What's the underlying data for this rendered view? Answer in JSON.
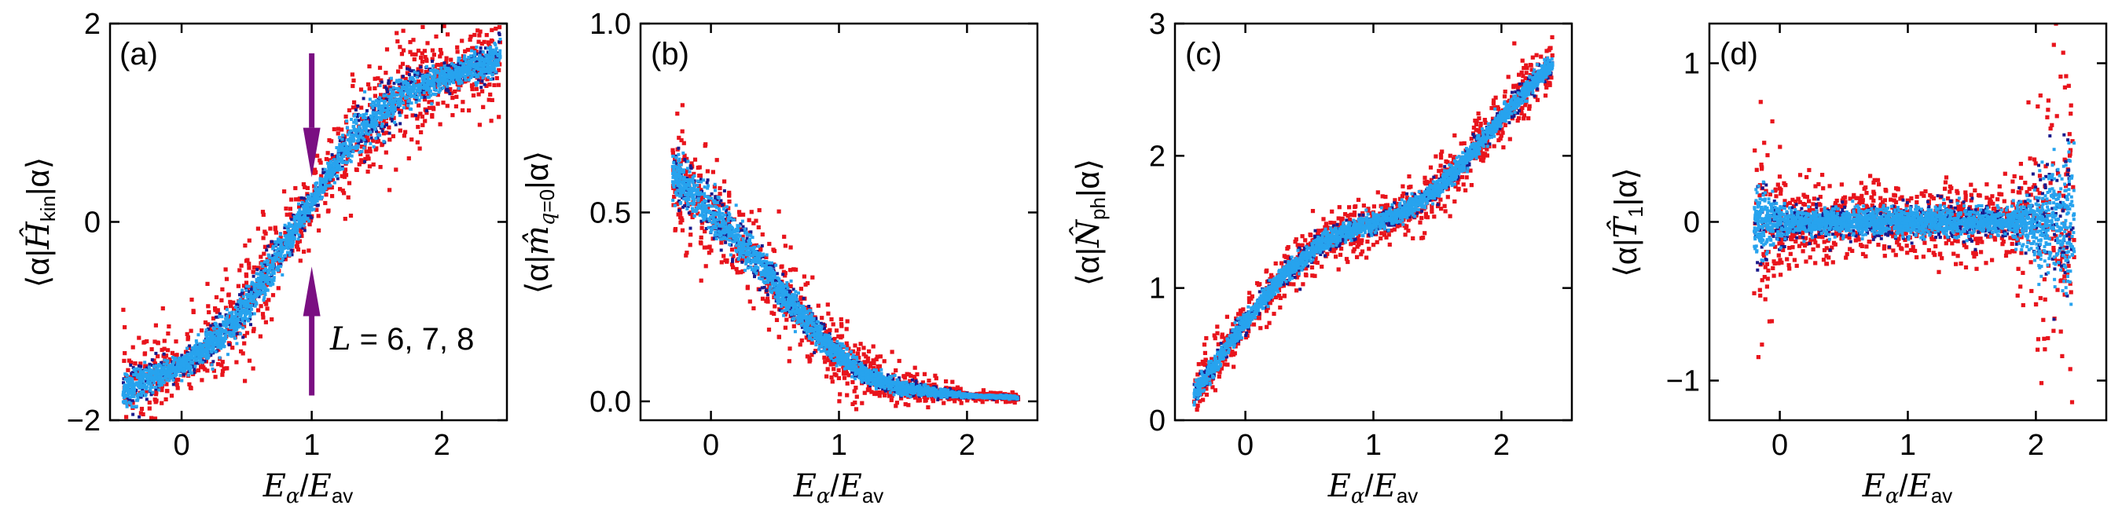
{
  "chart_data": [
    {
      "type": "scatter",
      "panel_label": "(a)",
      "ylabel": "⟨α|Ĥkin|α⟩",
      "xlabel": "Eα/Eav",
      "xlim": [
        -0.55,
        2.5
      ],
      "ylim": [
        -2,
        2
      ],
      "xticks": [
        0,
        1,
        2
      ],
      "yticks": [
        -2,
        0,
        2
      ],
      "ytick_labels": [
        "−2",
        "0",
        "2"
      ],
      "annotation": "L = 6, 7, 8",
      "arrows_at_x": 1,
      "arrow_color": "#7a0f82",
      "series_colors": [
        "#e8141c",
        "#1a1a8c",
        "#27a3ee"
      ],
      "trend": [
        [
          -0.45,
          -1.7
        ],
        [
          0.0,
          -1.45
        ],
        [
          0.4,
          -1.05
        ],
        [
          0.7,
          -0.45
        ],
        [
          0.9,
          0.0
        ],
        [
          1.1,
          0.4
        ],
        [
          1.35,
          0.9
        ],
        [
          1.7,
          1.3
        ],
        [
          2.1,
          1.5
        ],
        [
          2.45,
          1.65
        ]
      ]
    },
    {
      "type": "scatter",
      "panel_label": "(b)",
      "ylabel": "⟨α|m̂q=0|α⟩",
      "xlabel": "Eα/Eav",
      "xlim": [
        -0.55,
        2.55
      ],
      "ylim": [
        -0.05,
        1.0
      ],
      "xticks": [
        0,
        1,
        2
      ],
      "yticks": [
        0.0,
        0.5,
        1.0
      ],
      "ytick_labels": [
        "0.0",
        "0.5",
        "1.0"
      ],
      "series_colors": [
        "#e8141c",
        "#1a1a8c",
        "#27a3ee"
      ],
      "trend": [
        [
          -0.3,
          0.6
        ],
        [
          0.0,
          0.5
        ],
        [
          0.3,
          0.4
        ],
        [
          0.6,
          0.27
        ],
        [
          0.9,
          0.15
        ],
        [
          1.2,
          0.07
        ],
        [
          1.5,
          0.035
        ],
        [
          2.0,
          0.015
        ],
        [
          2.4,
          0.01
        ]
      ]
    },
    {
      "type": "scatter",
      "panel_label": "(c)",
      "ylabel": "⟨α|N̂ph|α⟩",
      "xlabel": "Eα/Eav",
      "xlim": [
        -0.55,
        2.55
      ],
      "ylim": [
        0,
        3
      ],
      "xticks": [
        0,
        1,
        2
      ],
      "yticks": [
        0,
        1,
        2,
        3
      ],
      "ytick_labels": [
        "0",
        "1",
        "2",
        "3"
      ],
      "series_colors": [
        "#e8141c",
        "#1a1a8c",
        "#27a3ee"
      ],
      "trend": [
        [
          -0.4,
          0.2
        ],
        [
          0.0,
          0.75
        ],
        [
          0.3,
          1.1
        ],
        [
          0.6,
          1.35
        ],
        [
          0.9,
          1.47
        ],
        [
          1.2,
          1.55
        ],
        [
          1.5,
          1.75
        ],
        [
          1.8,
          2.05
        ],
        [
          2.1,
          2.4
        ],
        [
          2.4,
          2.7
        ]
      ]
    },
    {
      "type": "scatter",
      "panel_label": "(d)",
      "ylabel": "⟨α|T̂1|α⟩",
      "xlabel": "Eα/Eav",
      "xlim": [
        -0.55,
        2.55
      ],
      "ylim": [
        -1.25,
        1.25
      ],
      "xticks": [
        0,
        1,
        2
      ],
      "yticks": [
        -1,
        0,
        1
      ],
      "ytick_labels": [
        "−1",
        "0",
        "1"
      ],
      "series_colors": [
        "#e8141c",
        "#1a1a8c",
        "#27a3ee"
      ],
      "trend": [
        [
          -0.2,
          0.0
        ],
        [
          0.5,
          0.0
        ],
        [
          1.0,
          0.0
        ],
        [
          1.5,
          0.0
        ],
        [
          2.0,
          0.0
        ],
        [
          2.3,
          0.0
        ]
      ]
    }
  ]
}
